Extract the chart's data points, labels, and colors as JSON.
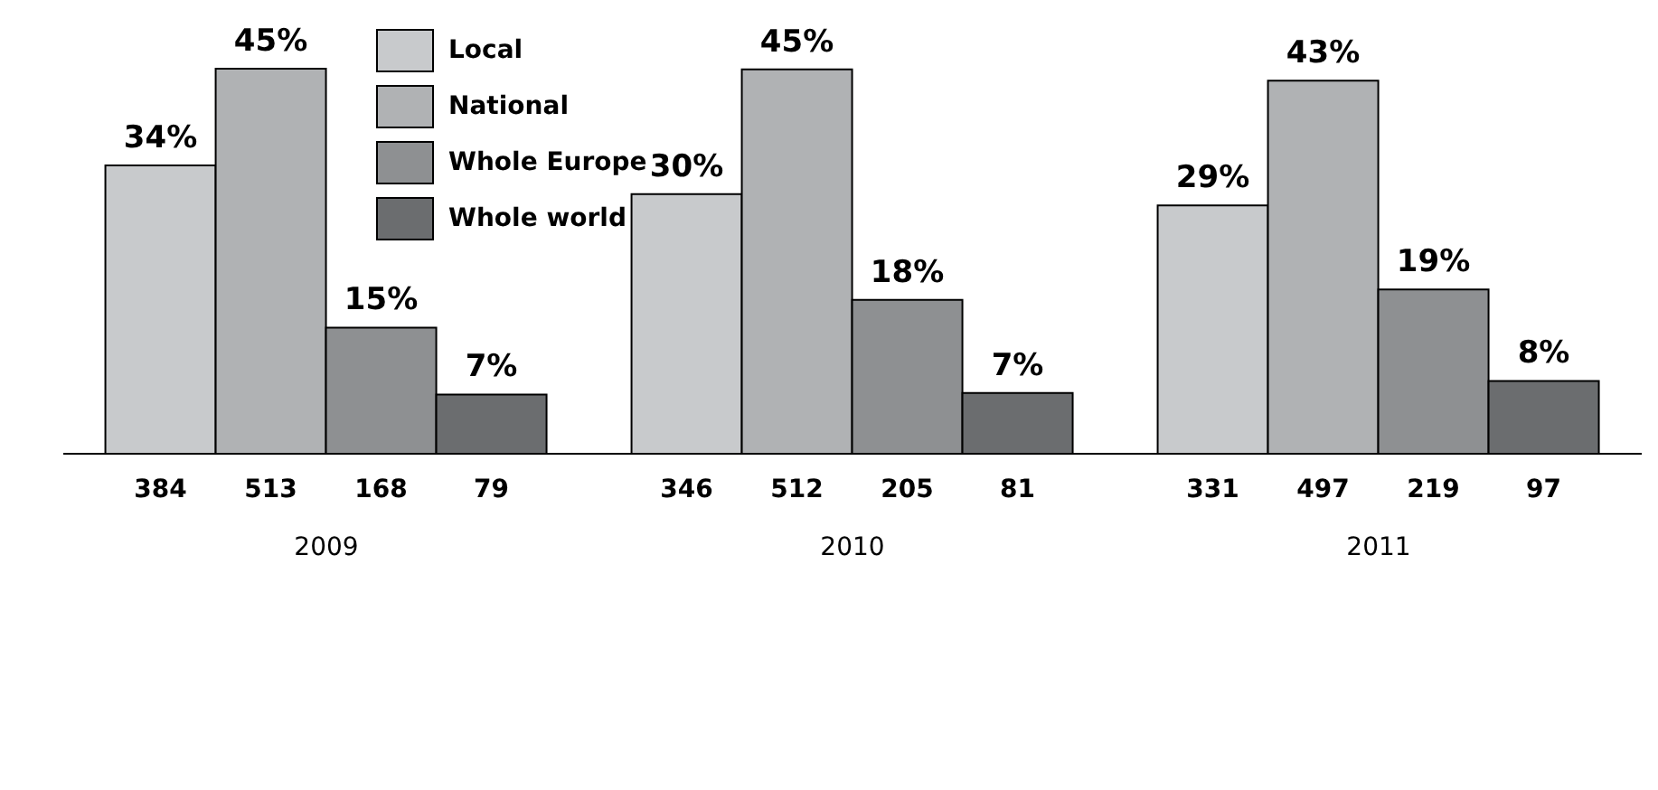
{
  "chart_data": {
    "type": "bar",
    "categories": [
      "2009",
      "2010",
      "2011"
    ],
    "series": [
      {
        "name": "Local",
        "color": "#c8cacc",
        "values": [
          384,
          346,
          331
        ]
      },
      {
        "name": "National",
        "color": "#b0b2b4",
        "values": [
          513,
          512,
          497
        ]
      },
      {
        "name": "Whole Europe",
        "color": "#8e9092",
        "values": [
          168,
          205,
          219
        ]
      },
      {
        "name": "Whole world",
        "color": "#6b6d6f",
        "values": [
          79,
          81,
          97
        ]
      }
    ],
    "annotations": [
      "34%",
      "30%",
      "29%",
      "45%",
      "45%",
      "43%",
      "15%",
      "18%",
      "19%",
      "7%",
      "7%",
      "8%"
    ],
    "data_labels": true,
    "legend": "top left",
    "grid": false
  }
}
